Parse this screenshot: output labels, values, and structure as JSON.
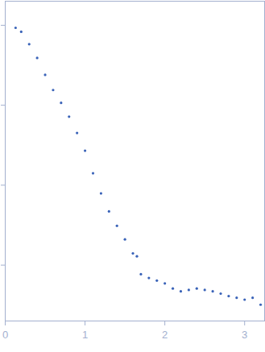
{
  "chart_data": {
    "type": "scatter",
    "color": "#3a63b8",
    "marker": "circle",
    "log": "y",
    "tick_labels": "x",
    "x": [
      0.13,
      0.2,
      0.3,
      0.4,
      0.5,
      0.6,
      0.7,
      0.8,
      0.9,
      1.0,
      1.1,
      1.2,
      1.3,
      1.4,
      1.5,
      1.6,
      1.65,
      1.7,
      1.8,
      1.9,
      2.0,
      2.1,
      2.2,
      2.3,
      2.4,
      2.5,
      2.6,
      2.7,
      2.8,
      2.9,
      3.0,
      3.1,
      3.2
    ],
    "values": [
      0.93,
      0.83,
      0.58,
      0.39,
      0.24,
      0.155,
      0.107,
      0.072,
      0.045,
      0.027,
      0.0141,
      0.0079,
      0.0047,
      0.0031,
      0.0021,
      0.0014,
      0.00129,
      0.00077,
      0.00069,
      0.00064,
      0.00059,
      0.00051,
      0.00047,
      0.00049,
      0.00051,
      0.00049,
      0.00047,
      0.00044,
      0.00041,
      0.00039,
      0.00037,
      0.00039,
      0.00032
    ],
    "xlim": [
      0,
      3.25
    ],
    "xticks": [
      0,
      1,
      2,
      3
    ],
    "ylim": [
      0.0002,
      2
    ],
    "yticks": [
      0.001,
      0.01,
      0.1,
      1
    ]
  }
}
